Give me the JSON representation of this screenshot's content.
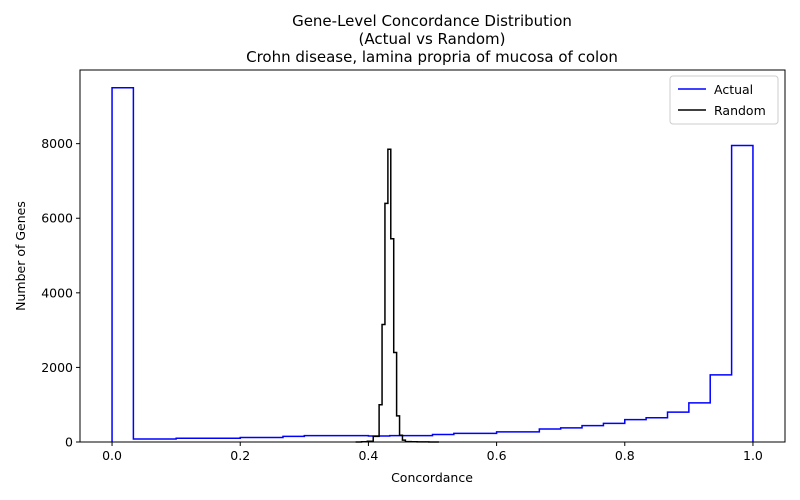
{
  "chart_data": {
    "type": "step-histogram",
    "title_lines": [
      "Gene-Level Concordance Distribution",
      "(Actual vs Random)",
      "Crohn disease, lamina propria of mucosa of colon"
    ],
    "xlabel": "Concordance",
    "ylabel": "Number of Genes",
    "xlim": [
      -0.05,
      1.05
    ],
    "ylim": [
      0,
      9975
    ],
    "xticks": [
      0.0,
      0.2,
      0.4,
      0.6,
      0.8,
      1.0
    ],
    "xtick_labels": [
      "0.0",
      "0.2",
      "0.4",
      "0.6",
      "0.8",
      "1.0"
    ],
    "yticks": [
      0,
      2000,
      4000,
      6000,
      8000
    ],
    "ytick_labels": [
      "0",
      "2000",
      "4000",
      "6000",
      "8000"
    ],
    "legend_position": "top-right",
    "series": [
      {
        "name": "Actual",
        "color": "#0000ff",
        "bin_edges": [
          0.0,
          0.0333,
          0.0667,
          0.1,
          0.1333,
          0.1667,
          0.2,
          0.2333,
          0.2667,
          0.3,
          0.3333,
          0.3667,
          0.4,
          0.4333,
          0.4667,
          0.5,
          0.5333,
          0.5667,
          0.6,
          0.6333,
          0.6667,
          0.7,
          0.7333,
          0.7667,
          0.8,
          0.8333,
          0.8667,
          0.9,
          0.9333,
          0.9667,
          1.0
        ],
        "counts": [
          9500,
          80,
          80,
          100,
          100,
          100,
          120,
          120,
          150,
          170,
          170,
          170,
          160,
          170,
          170,
          200,
          230,
          230,
          270,
          270,
          350,
          380,
          440,
          500,
          600,
          650,
          800,
          1050,
          1800,
          7950
        ]
      },
      {
        "name": "Random",
        "color": "#000000",
        "bin_edges": [
          0.38,
          0.3892,
          0.3983,
          0.4075,
          0.4167,
          0.4213,
          0.4258,
          0.4304,
          0.4349,
          0.4395,
          0.444,
          0.4486,
          0.4531,
          0.4577,
          0.4668,
          0.476,
          0.4851,
          0.4943,
          0.5034,
          0.51
        ],
        "counts": [
          0,
          5,
          20,
          150,
          1000,
          3150,
          6400,
          7850,
          5450,
          2400,
          700,
          180,
          50,
          10,
          5,
          3,
          2,
          1,
          0
        ]
      }
    ]
  }
}
